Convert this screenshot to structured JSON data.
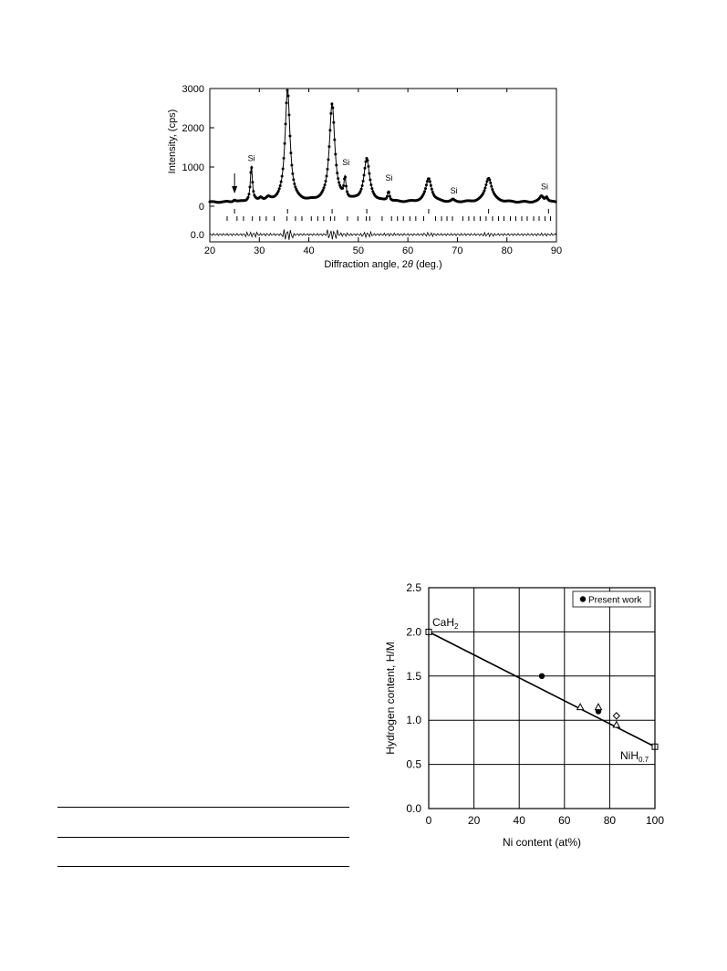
{
  "chart_data": [
    {
      "type": "line",
      "title": "",
      "xlabel_prefix": "Diffraction angle, 2",
      "xlabel_symbol": "θ",
      "xlabel_suffix": " (deg.)",
      "ylabel": "Intensity, (cps)",
      "xlim": [
        20,
        90
      ],
      "ylim": [
        0,
        3000
      ],
      "x_ticks": [
        20,
        30,
        40,
        50,
        60,
        70,
        80,
        90
      ],
      "y_ticks": [
        0,
        1000,
        2000,
        3000
      ],
      "residual_label": "0.0",
      "baseline": 100,
      "peaks": [
        {
          "x": 25.0,
          "height": 50,
          "width": 0.3
        },
        {
          "x": 28.4,
          "height": 900,
          "width": 0.25
        },
        {
          "x": 30.3,
          "height": 90,
          "width": 0.4
        },
        {
          "x": 31.8,
          "height": 70,
          "width": 0.5
        },
        {
          "x": 35.7,
          "height": 2850,
          "width": 0.6
        },
        {
          "x": 44.7,
          "height": 2500,
          "width": 0.65
        },
        {
          "x": 47.3,
          "height": 500,
          "width": 0.25
        },
        {
          "x": 51.7,
          "height": 1080,
          "width": 0.7
        },
        {
          "x": 56.1,
          "height": 250,
          "width": 0.25
        },
        {
          "x": 64.2,
          "height": 600,
          "width": 0.7
        },
        {
          "x": 69.1,
          "height": 50,
          "width": 0.3
        },
        {
          "x": 76.3,
          "height": 620,
          "width": 0.8
        },
        {
          "x": 87.0,
          "height": 150,
          "width": 0.5
        },
        {
          "x": 88.0,
          "height": 120,
          "width": 0.3
        }
      ],
      "annotations": [
        {
          "text": "Si",
          "x": 28.4,
          "y": 1150
        },
        {
          "text": "Si",
          "x": 47.5,
          "y": 1050
        },
        {
          "text": "Si",
          "x": 56.2,
          "y": 650
        },
        {
          "text": "Si",
          "x": 69.3,
          "y": 330
        },
        {
          "text": "Si",
          "x": 87.6,
          "y": 430
        }
      ],
      "arrow_x": 25.0,
      "reflection_ticks_row1": [
        25,
        35.7,
        44.7,
        51.7,
        64.2,
        76.3,
        88.4
      ],
      "reflection_ticks_row2": [
        23.5,
        25.5,
        26.8,
        28.6,
        30.1,
        31.4,
        33.0,
        35.6,
        37.3,
        38.6,
        40.5,
        41.8,
        43.0,
        44.4,
        45.2,
        47.8,
        49.9,
        51.6,
        52.3,
        54.8,
        56.7,
        57.9,
        59.1,
        60.4,
        61.6,
        63.2,
        65.6,
        66.8,
        67.9,
        69.0,
        71.1,
        72.3,
        73.4,
        74.6,
        75.8,
        77.1,
        78.3,
        79.4,
        80.7,
        81.8,
        83.0,
        84.1,
        85.4,
        86.5,
        87.7,
        88.8
      ]
    },
    {
      "type": "scatter",
      "title": "",
      "xlabel": "Ni content (at%)",
      "ylabel": "Hydrogen content, H/M",
      "xlim": [
        0,
        100
      ],
      "ylim": [
        0.0,
        2.5
      ],
      "x_ticks": [
        "0",
        "20",
        "40",
        "60",
        "80",
        "100"
      ],
      "y_ticks": [
        "0.0",
        "0.5",
        "1.0",
        "1.5",
        "2.0",
        "2.5"
      ],
      "grid": true,
      "legend_position": "top-right",
      "legend": "Present work",
      "label_cah2": {
        "base": "CaH",
        "sub": "2"
      },
      "label_nih": {
        "base": "NiH",
        "sub": "0.7"
      },
      "fit_line": [
        [
          0,
          2.0
        ],
        [
          100,
          0.7
        ]
      ],
      "series": [
        {
          "marker": "circle-filled",
          "points": [
            [
              50,
              1.5
            ],
            [
              75,
              1.1
            ],
            [
              75,
              1.12
            ]
          ]
        },
        {
          "marker": "triangle-open",
          "points": [
            [
              67,
              1.15
            ],
            [
              75,
              1.15
            ],
            [
              83,
              0.95
            ]
          ]
        },
        {
          "marker": "diamond-open",
          "points": [
            [
              83,
              1.05
            ]
          ]
        },
        {
          "marker": "square-open",
          "points": [
            [
              0,
              2.0
            ],
            [
              100,
              0.7
            ]
          ]
        }
      ]
    }
  ]
}
